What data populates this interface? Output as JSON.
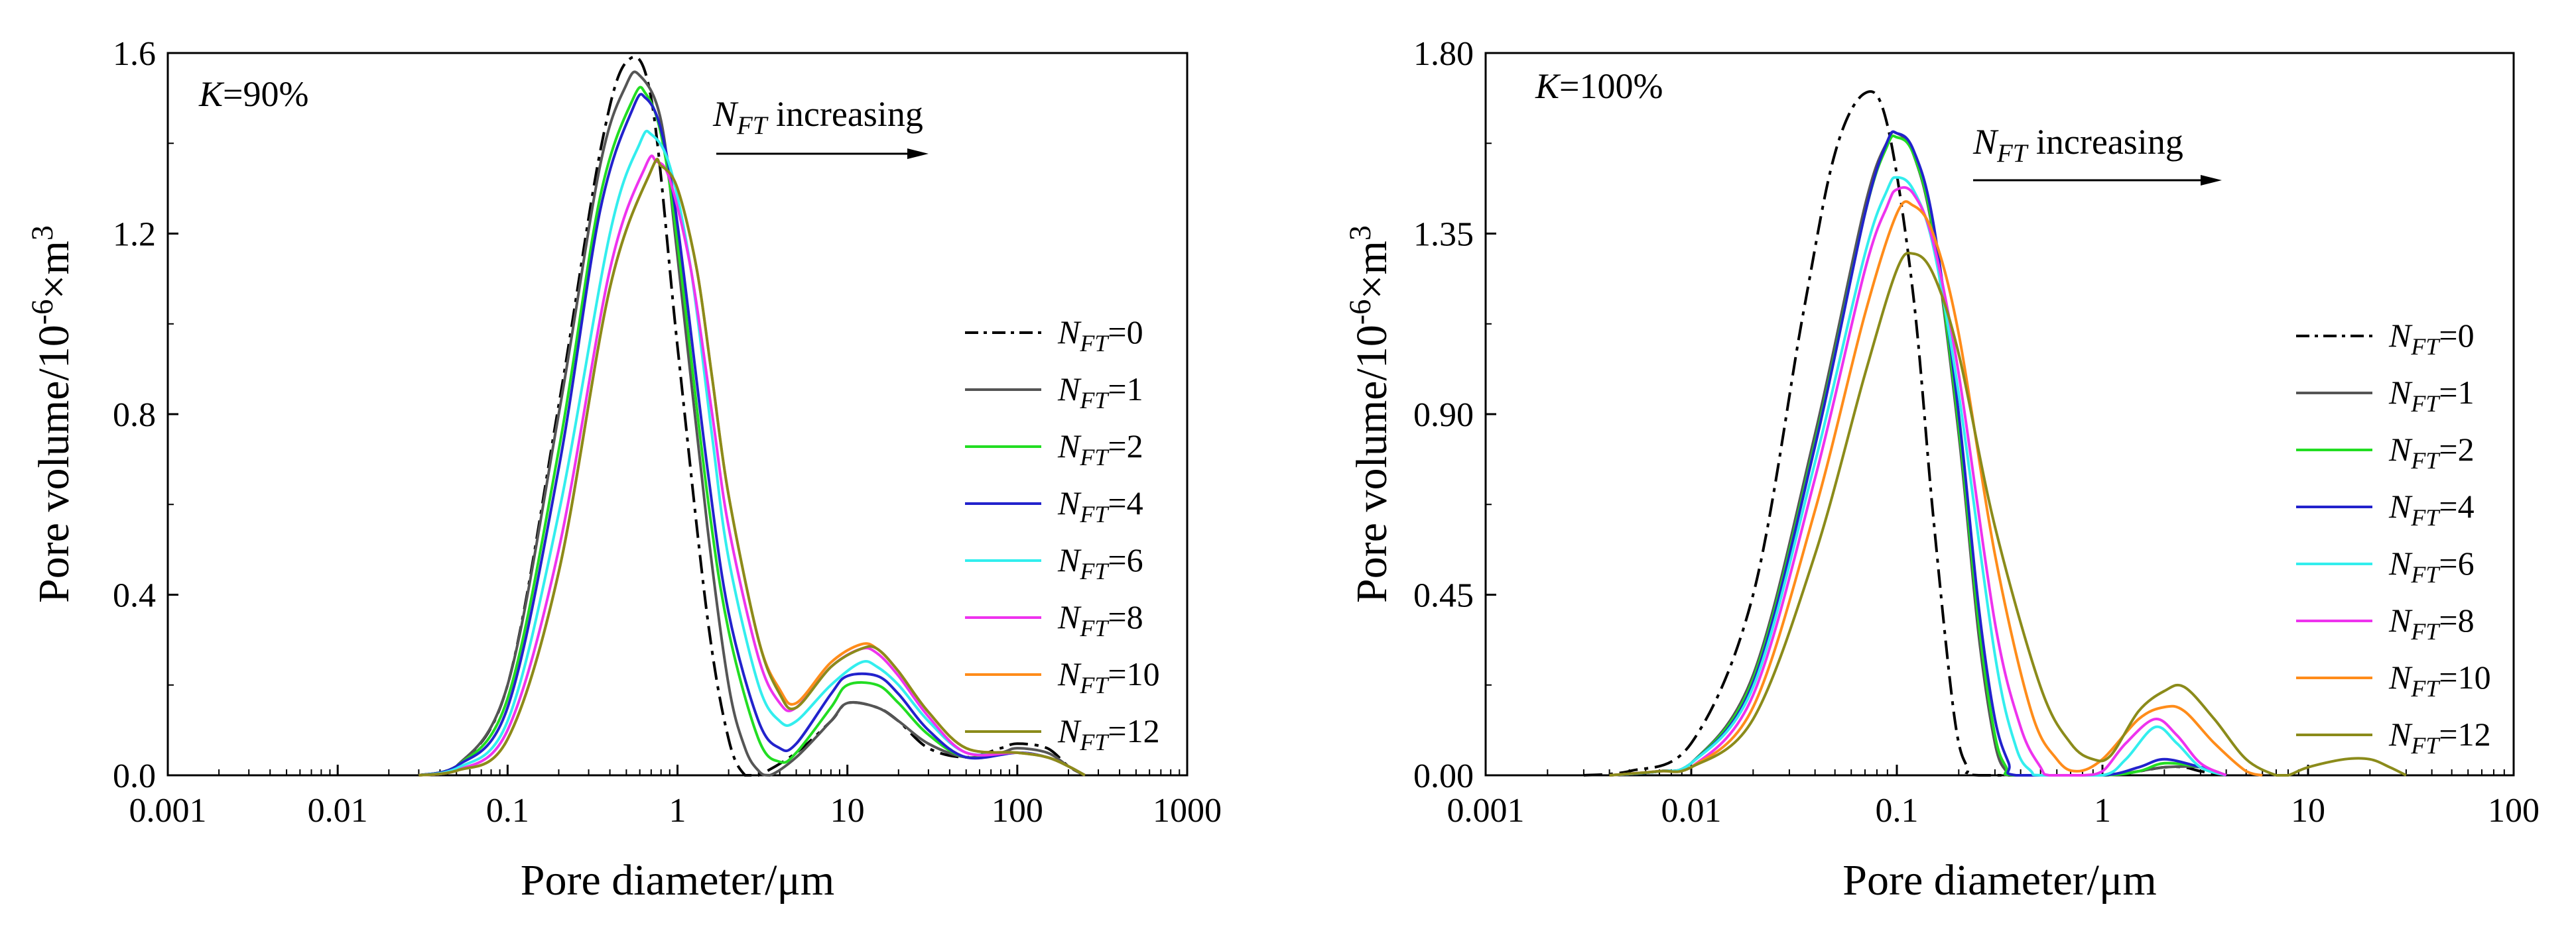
{
  "chart_data": [
    {
      "type": "line",
      "annotation": "K=90%",
      "arrow_label": "N_FT increasing",
      "xlabel": "Pore diameter/μm",
      "ylabel": "Pore volume/10-6×m3",
      "x_scale": "log",
      "xlim": [
        0.001,
        1000
      ],
      "ylim": [
        0,
        1.6
      ],
      "xticks": [
        "0.001",
        "0.01",
        "0.1",
        "1",
        "10",
        "100",
        "1000"
      ],
      "yticks": [
        "0.0",
        "0.4",
        "0.8",
        "1.2",
        "1.6"
      ],
      "ytick_values": [
        0,
        0.4,
        0.8,
        1.2,
        1.6
      ],
      "legend_position": "right",
      "series": [
        {
          "name": "N_FT=0",
          "color": "#000000",
          "dash": "dashdot",
          "x": [
            0.03,
            0.05,
            0.1,
            0.2,
            0.35,
            0.5,
            0.7,
            1,
            1.5,
            2,
            2.5,
            3,
            5,
            8,
            10,
            15,
            20,
            30,
            50,
            80,
            100,
            150,
            200,
            250
          ],
          "y": [
            0,
            0.02,
            0.2,
            0.82,
            1.38,
            1.58,
            1.5,
            0.95,
            0.35,
            0.08,
            0,
            0,
            0.05,
            0.12,
            0.16,
            0.15,
            0.12,
            0.06,
            0.04,
            0.06,
            0.07,
            0.06,
            0.02,
            0
          ]
        },
        {
          "name": "N_FT=1",
          "color": "#555555",
          "dash": "solid",
          "x": [
            0.03,
            0.05,
            0.1,
            0.2,
            0.35,
            0.5,
            0.6,
            0.8,
            1,
            1.5,
            2,
            2.5,
            3,
            3.5,
            5,
            8,
            10,
            15,
            20,
            30,
            50,
            80,
            100,
            150,
            200,
            250
          ],
          "y": [
            0,
            0.02,
            0.2,
            0.8,
            1.35,
            1.53,
            1.55,
            1.45,
            1.15,
            0.55,
            0.2,
            0.06,
            0.01,
            0,
            0.04,
            0.12,
            0.16,
            0.15,
            0.12,
            0.07,
            0.04,
            0.05,
            0.06,
            0.05,
            0.02,
            0
          ]
        },
        {
          "name": "N_FT=2",
          "color": "#22DD22",
          "dash": "solid",
          "x": [
            0.03,
            0.05,
            0.1,
            0.2,
            0.35,
            0.55,
            0.65,
            0.8,
            1,
            1.5,
            2,
            3,
            4,
            5,
            8,
            10,
            15,
            20,
            30,
            50,
            100,
            150,
            200,
            250
          ],
          "y": [
            0,
            0.02,
            0.17,
            0.72,
            1.28,
            1.5,
            1.51,
            1.42,
            1.18,
            0.62,
            0.32,
            0.08,
            0.03,
            0.05,
            0.15,
            0.2,
            0.2,
            0.16,
            0.09,
            0.04,
            0.05,
            0.04,
            0.02,
            0
          ]
        },
        {
          "name": "N_FT=4",
          "color": "#2222CC",
          "dash": "solid",
          "x": [
            0.03,
            0.05,
            0.1,
            0.2,
            0.35,
            0.55,
            0.65,
            0.8,
            1,
            1.5,
            2,
            3,
            4,
            5,
            8,
            10,
            15,
            20,
            30,
            50,
            100,
            150,
            200,
            250
          ],
          "y": [
            0,
            0.02,
            0.15,
            0.68,
            1.25,
            1.48,
            1.5,
            1.43,
            1.22,
            0.68,
            0.36,
            0.12,
            0.06,
            0.07,
            0.18,
            0.22,
            0.22,
            0.18,
            0.1,
            0.04,
            0.05,
            0.04,
            0.02,
            0
          ]
        },
        {
          "name": "N_FT=6",
          "color": "#33EEEE",
          "dash": "solid",
          "x": [
            0.03,
            0.05,
            0.1,
            0.2,
            0.4,
            0.6,
            0.7,
            0.9,
            1.2,
            1.6,
            2,
            3,
            4,
            5,
            8,
            12,
            15,
            20,
            30,
            50,
            100,
            150,
            200,
            250
          ],
          "y": [
            0,
            0.015,
            0.12,
            0.58,
            1.2,
            1.4,
            1.42,
            1.35,
            1.12,
            0.75,
            0.48,
            0.2,
            0.12,
            0.12,
            0.2,
            0.25,
            0.24,
            0.2,
            0.12,
            0.05,
            0.05,
            0.04,
            0.02,
            0
          ]
        },
        {
          "name": "N_FT=8",
          "color": "#EE33EE",
          "dash": "solid",
          "x": [
            0.03,
            0.05,
            0.1,
            0.2,
            0.4,
            0.65,
            0.75,
            0.9,
            1.2,
            1.6,
            2,
            3,
            4,
            5,
            8,
            12,
            15,
            20,
            30,
            50,
            100,
            150,
            200,
            250
          ],
          "y": [
            0,
            0.01,
            0.1,
            0.5,
            1.12,
            1.35,
            1.36,
            1.32,
            1.12,
            0.8,
            0.55,
            0.26,
            0.16,
            0.15,
            0.24,
            0.28,
            0.27,
            0.22,
            0.13,
            0.05,
            0.05,
            0.04,
            0.02,
            0
          ]
        },
        {
          "name": "N_FT=10",
          "color": "#FF8C1A",
          "dash": "solid",
          "x": [
            0.03,
            0.05,
            0.1,
            0.2,
            0.4,
            0.7,
            0.8,
            1,
            1.3,
            1.6,
            2,
            3,
            4,
            5,
            8,
            12,
            15,
            20,
            30,
            50,
            100,
            150,
            200,
            250
          ],
          "y": [
            0,
            0.01,
            0.08,
            0.45,
            1.08,
            1.34,
            1.35,
            1.3,
            1.12,
            0.88,
            0.62,
            0.3,
            0.19,
            0.16,
            0.25,
            0.29,
            0.28,
            0.23,
            0.14,
            0.06,
            0.05,
            0.04,
            0.02,
            0
          ]
        },
        {
          "name": "N_FT=12",
          "color": "#8B8B1A",
          "dash": "solid",
          "x": [
            0.03,
            0.05,
            0.1,
            0.2,
            0.4,
            0.7,
            0.8,
            1,
            1.3,
            1.6,
            2,
            3,
            4,
            5,
            8,
            12,
            15,
            20,
            30,
            50,
            100,
            150,
            200,
            250
          ],
          "y": [
            0,
            0.01,
            0.08,
            0.45,
            1.08,
            1.34,
            1.35,
            1.3,
            1.12,
            0.88,
            0.62,
            0.3,
            0.18,
            0.15,
            0.24,
            0.28,
            0.28,
            0.23,
            0.14,
            0.06,
            0.05,
            0.04,
            0.02,
            0
          ]
        }
      ]
    },
    {
      "type": "line",
      "annotation": "K=100%",
      "arrow_label": "N FT increasing",
      "xlabel": "Pore diameter/μm",
      "ylabel": "Pore volume/10-6×m3",
      "x_scale": "log",
      "xlim": [
        0.001,
        100
      ],
      "ylim": [
        0,
        1.8
      ],
      "xticks": [
        "0.001",
        "0.01",
        "0.1",
        "1",
        "10",
        "100"
      ],
      "yticks": [
        "0.00",
        "0.45",
        "0.90",
        "1.35",
        "1.80"
      ],
      "ytick_values": [
        0,
        0.45,
        0.9,
        1.35,
        1.8
      ],
      "legend_position": "right",
      "series": [
        {
          "name": "N_FT=0",
          "color": "#000000",
          "dash": "dashdot",
          "x": [
            0.003,
            0.005,
            0.01,
            0.02,
            0.035,
            0.05,
            0.07,
            0.09,
            0.12,
            0.15,
            0.19,
            0.22,
            0.25,
            1,
            1.5,
            2,
            2.5,
            3,
            4
          ],
          "y": [
            0,
            0.01,
            0.08,
            0.45,
            1.15,
            1.55,
            1.7,
            1.62,
            1.2,
            0.65,
            0.15,
            0.02,
            0,
            0,
            0.01,
            0.02,
            0.02,
            0.01,
            0
          ]
        },
        {
          "name": "N_FT=1",
          "color": "#555555",
          "dash": "solid",
          "x": [
            0.004,
            0.007,
            0.01,
            0.02,
            0.04,
            0.07,
            0.09,
            0.1,
            0.12,
            0.15,
            0.2,
            0.25,
            0.3,
            0.34,
            0.37,
            1,
            1.5,
            2,
            3,
            4
          ],
          "y": [
            0,
            0.01,
            0.03,
            0.25,
            0.85,
            1.42,
            1.58,
            1.6,
            1.55,
            1.35,
            0.85,
            0.35,
            0.08,
            0.01,
            0,
            0,
            0.01,
            0.02,
            0.02,
            0
          ]
        },
        {
          "name": "N_FT=2",
          "color": "#22DD22",
          "dash": "solid",
          "x": [
            0.004,
            0.007,
            0.01,
            0.02,
            0.04,
            0.07,
            0.09,
            0.1,
            0.12,
            0.15,
            0.2,
            0.25,
            0.3,
            0.34,
            0.37,
            1,
            1.5,
            2,
            3,
            4
          ],
          "y": [
            0,
            0.01,
            0.03,
            0.24,
            0.83,
            1.4,
            1.57,
            1.59,
            1.55,
            1.36,
            0.87,
            0.38,
            0.1,
            0.02,
            0,
            0,
            0.01,
            0.03,
            0.02,
            0
          ]
        },
        {
          "name": "N_FT=4",
          "color": "#2222CC",
          "dash": "solid",
          "x": [
            0.004,
            0.007,
            0.01,
            0.02,
            0.04,
            0.07,
            0.09,
            0.1,
            0.12,
            0.15,
            0.2,
            0.25,
            0.3,
            0.35,
            0.38,
            1,
            1.5,
            2,
            3,
            4
          ],
          "y": [
            0,
            0.01,
            0.03,
            0.23,
            0.82,
            1.4,
            1.58,
            1.6,
            1.56,
            1.38,
            0.9,
            0.42,
            0.14,
            0.03,
            0,
            0,
            0.02,
            0.04,
            0.02,
            0
          ]
        },
        {
          "name": "N_FT=6",
          "color": "#33EEEE",
          "dash": "solid",
          "x": [
            0.004,
            0.007,
            0.01,
            0.02,
            0.04,
            0.07,
            0.09,
            0.1,
            0.12,
            0.15,
            0.2,
            0.3,
            0.38,
            0.45,
            0.5,
            1,
            1.3,
            1.8,
            2.3,
            3,
            4
          ],
          "y": [
            0,
            0.01,
            0.03,
            0.22,
            0.78,
            1.3,
            1.46,
            1.49,
            1.46,
            1.32,
            0.95,
            0.3,
            0.07,
            0.01,
            0,
            0,
            0.04,
            0.12,
            0.08,
            0.02,
            0
          ]
        },
        {
          "name": "N_FT=8",
          "color": "#EE33EE",
          "dash": "solid",
          "x": [
            0.004,
            0.007,
            0.01,
            0.02,
            0.04,
            0.07,
            0.09,
            0.1,
            0.12,
            0.15,
            0.2,
            0.3,
            0.4,
            0.5,
            0.55,
            0.8,
            1,
            1.3,
            1.8,
            2.3,
            3,
            4
          ],
          "y": [
            0,
            0.01,
            0.02,
            0.2,
            0.74,
            1.26,
            1.42,
            1.46,
            1.45,
            1.33,
            1.0,
            0.38,
            0.12,
            0.02,
            0,
            0,
            0.01,
            0.08,
            0.14,
            0.1,
            0.03,
            0
          ]
        },
        {
          "name": "N_FT=10",
          "color": "#FF8C1A",
          "dash": "solid",
          "x": [
            0.004,
            0.007,
            0.01,
            0.02,
            0.04,
            0.07,
            0.1,
            0.12,
            0.15,
            0.2,
            0.3,
            0.45,
            0.6,
            0.75,
            1,
            1.5,
            2,
            2.5,
            3.5,
            5,
            6
          ],
          "y": [
            0,
            0.01,
            0.02,
            0.17,
            0.66,
            1.15,
            1.4,
            1.42,
            1.35,
            1.1,
            0.55,
            0.16,
            0.04,
            0.01,
            0.04,
            0.14,
            0.17,
            0.16,
            0.08,
            0.01,
            0
          ]
        },
        {
          "name": "N_FT=12",
          "color": "#8B8B1A",
          "dash": "solid",
          "x": [
            0.004,
            0.007,
            0.01,
            0.02,
            0.04,
            0.07,
            0.1,
            0.12,
            0.15,
            0.2,
            0.3,
            0.5,
            0.7,
            0.9,
            1.1,
            1.5,
            2,
            2.5,
            3.5,
            5,
            7,
            8,
            10,
            15,
            20,
            25,
            30
          ],
          "y": [
            0,
            0.01,
            0.02,
            0.14,
            0.55,
            1.0,
            1.26,
            1.3,
            1.25,
            1.05,
            0.62,
            0.22,
            0.08,
            0.04,
            0.05,
            0.16,
            0.21,
            0.22,
            0.14,
            0.04,
            0,
            0,
            0.02,
            0.04,
            0.04,
            0.02,
            0
          ]
        }
      ]
    }
  ]
}
